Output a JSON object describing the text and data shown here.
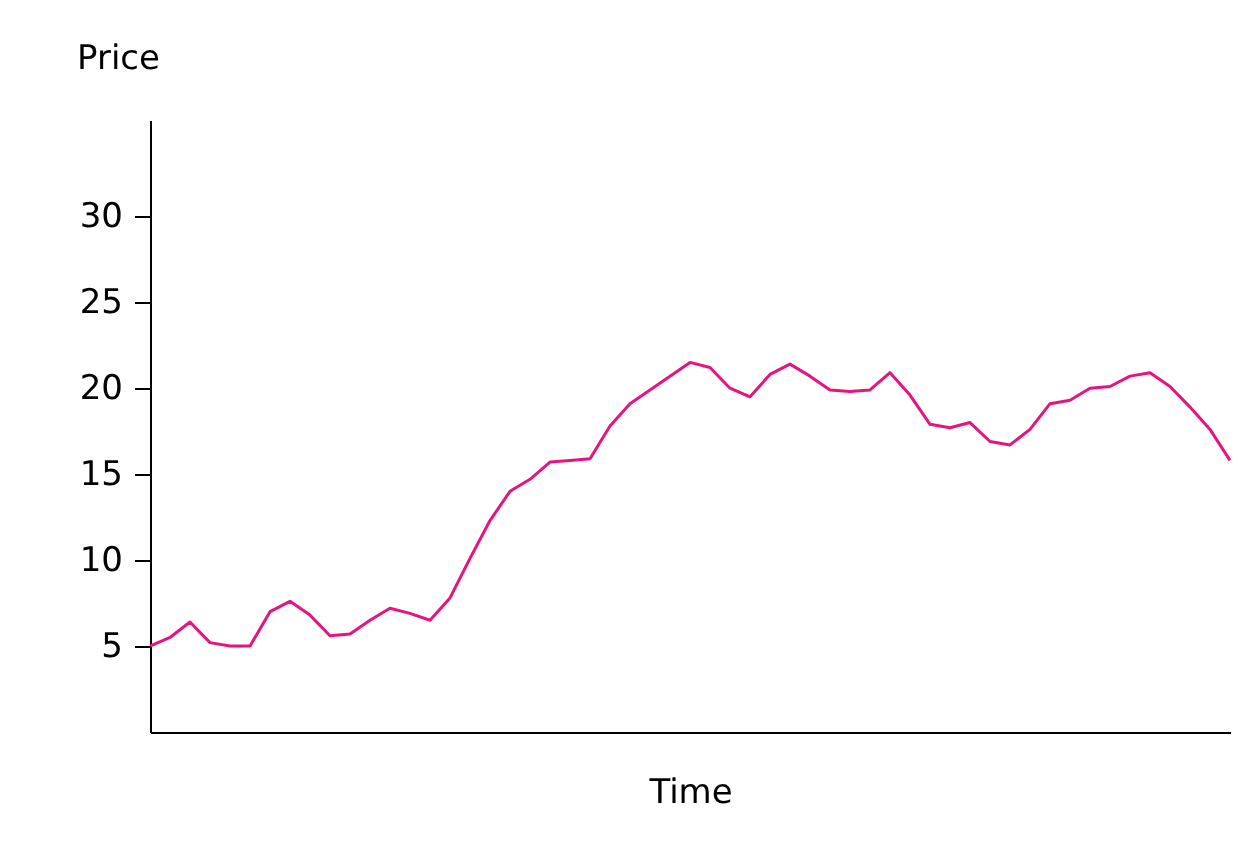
{
  "chart_data": {
    "type": "line",
    "ylabel": "Price",
    "xlabel": "Time",
    "categories": [
      null,
      null,
      null,
      null,
      null,
      null,
      null,
      null,
      null,
      null,
      null,
      null,
      null,
      null,
      null,
      null,
      null,
      null,
      null,
      null,
      null,
      null,
      null,
      null,
      null,
      null,
      null,
      null,
      null,
      null,
      null,
      null,
      null,
      null,
      null,
      null,
      null,
      null,
      null,
      null,
      null,
      null,
      null,
      null,
      null,
      null,
      null,
      null,
      null,
      null,
      null,
      null,
      null,
      null,
      null
    ],
    "series": [
      {
        "color": "#e6147f",
        "values": [
          5.0,
          5.5,
          6.4,
          5.2,
          5.0,
          5.0,
          7.0,
          7.6,
          6.8,
          5.6,
          5.7,
          6.5,
          7.2,
          6.9,
          6.5,
          7.8,
          10.1,
          12.3,
          14.0,
          14.7,
          15.7,
          15.8,
          15.9,
          17.8,
          19.1,
          19.9,
          20.7,
          21.5,
          21.2,
          20.0,
          19.5,
          20.8,
          21.4,
          20.7,
          19.9,
          19.8,
          19.9,
          20.9,
          19.6,
          17.9,
          17.7,
          18.0,
          16.9,
          16.7,
          17.6,
          19.1,
          19.3,
          20.0,
          20.1,
          20.7,
          20.9,
          20.1,
          18.9,
          17.6,
          15.8
        ]
      }
    ],
    "ylim": [
      0,
      35.6
    ],
    "yticks": [
      5,
      10,
      15,
      20,
      25,
      30
    ],
    "grid": false,
    "marker": "none",
    "line_style": "solid"
  }
}
